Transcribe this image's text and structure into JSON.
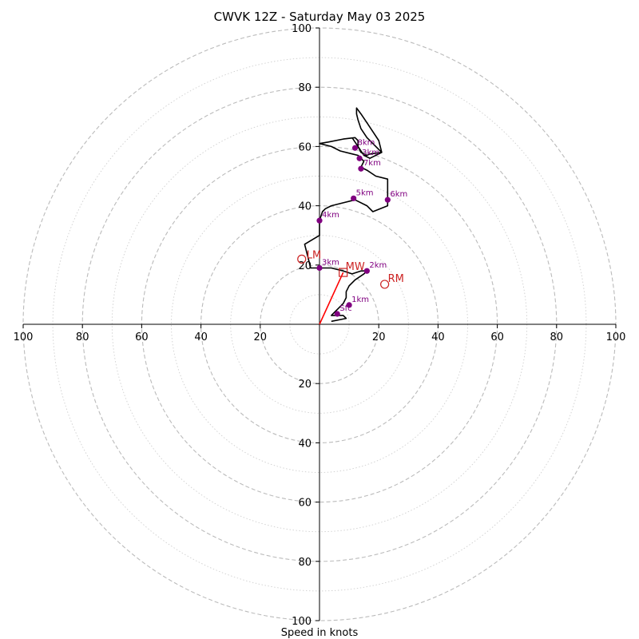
{
  "chart_data": {
    "type": "hodograph",
    "title": "CWVK 12Z - Saturday May 03 2025",
    "xlabel": "Speed in knots",
    "range": 100,
    "ring_step_dashed": 20,
    "ring_step_dotted": 10,
    "tick_labels": {
      "x_left": [
        "100",
        "80",
        "60",
        "40",
        "20"
      ],
      "x_right": [
        "20",
        "40",
        "60",
        "80",
        "100"
      ],
      "y_up": [
        "20",
        "40",
        "60",
        "80",
        "100"
      ],
      "y_down": [
        "20",
        "40",
        "60",
        "80",
        "100"
      ]
    },
    "hodograph_trace": [
      [
        4,
        1
      ],
      [
        9,
        2
      ],
      [
        8,
        3
      ],
      [
        4,
        3
      ],
      [
        6,
        5
      ],
      [
        8,
        7
      ],
      [
        9,
        9
      ],
      [
        9,
        10
      ],
      [
        9,
        11
      ],
      [
        10,
        13
      ],
      [
        12,
        15
      ],
      [
        15,
        17
      ],
      [
        16,
        18
      ],
      [
        14,
        18
      ],
      [
        11,
        17
      ],
      [
        8,
        18
      ],
      [
        4,
        19
      ],
      [
        0,
        19
      ],
      [
        -3,
        19
      ],
      [
        -4,
        23
      ],
      [
        -5,
        27
      ],
      [
        0,
        30
      ],
      [
        0,
        32
      ],
      [
        0,
        35
      ],
      [
        1,
        38
      ],
      [
        2,
        39
      ],
      [
        4,
        40
      ],
      [
        8,
        41
      ],
      [
        12,
        42
      ],
      [
        16,
        40
      ],
      [
        18,
        38
      ],
      [
        23,
        40
      ],
      [
        23,
        44
      ],
      [
        23,
        49
      ],
      [
        19,
        50
      ],
      [
        16,
        52
      ],
      [
        14,
        53
      ],
      [
        15,
        55
      ],
      [
        14,
        56
      ],
      [
        13,
        57
      ],
      [
        11,
        57.5
      ],
      [
        7,
        58.5
      ],
      [
        4,
        60
      ],
      [
        0,
        61
      ],
      [
        3,
        61.5
      ],
      [
        8,
        62.5
      ],
      [
        12,
        63
      ],
      [
        13,
        62
      ],
      [
        13,
        60
      ],
      [
        14,
        58
      ],
      [
        16,
        57
      ],
      [
        17,
        57.5
      ],
      [
        21,
        58
      ],
      [
        18,
        61
      ],
      [
        16,
        63
      ],
      [
        14,
        66
      ],
      [
        13,
        69
      ],
      [
        12.5,
        71
      ],
      [
        12.5,
        73
      ],
      [
        14,
        71
      ],
      [
        16,
        68
      ],
      [
        18,
        65
      ],
      [
        20,
        62
      ],
      [
        21,
        58
      ],
      [
        17,
        56
      ],
      [
        15,
        57
      ],
      [
        13,
        60
      ],
      [
        11,
        63
      ]
    ],
    "height_markers": [
      {
        "label": "Sfc",
        "u": 6,
        "v": 3.5
      },
      {
        "label": "1km",
        "u": 10,
        "v": 6.5
      },
      {
        "label": "2km",
        "u": 16,
        "v": 18
      },
      {
        "label": "3km",
        "u": 0,
        "v": 19
      },
      {
        "label": "4km",
        "u": 0,
        "v": 35
      },
      {
        "label": "5km",
        "u": 11.5,
        "v": 42.5
      },
      {
        "label": "6km",
        "u": 23,
        "v": 42
      },
      {
        "label": "7km",
        "u": 14,
        "v": 52.5
      },
      {
        "label": "3km",
        "u": 13.5,
        "v": 56
      },
      {
        "label": "8km",
        "u": 12,
        "v": 59.5
      }
    ],
    "storm_motion": {
      "LM": {
        "label": "LM",
        "u": -6,
        "v": 22
      },
      "RM": {
        "label": "RM",
        "u": 22,
        "v": 13.5
      },
      "MW": {
        "label": "MW",
        "u": 8,
        "v": 17.5
      }
    },
    "colors": {
      "trace": "#000000",
      "markers": "#800080",
      "storm_motion": "#cc2222",
      "shear_vector": "#ff0000",
      "rings": "#bbbbbb"
    }
  }
}
